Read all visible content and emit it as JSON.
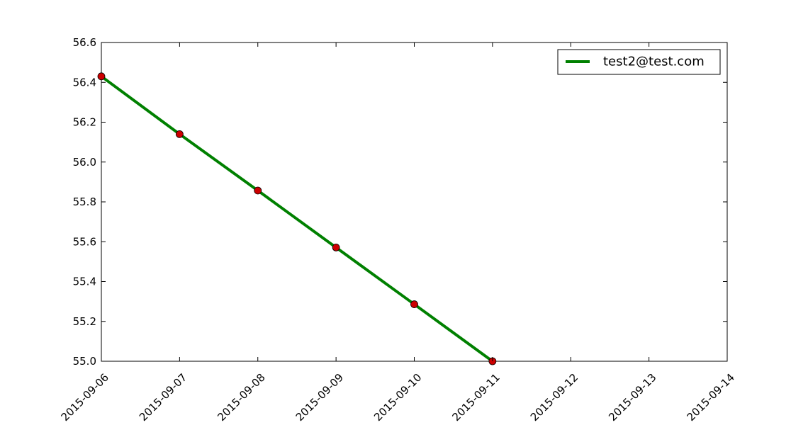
{
  "chart_data": {
    "type": "line",
    "title": "",
    "xlabel": "",
    "ylabel": "",
    "x_type": "date",
    "xlim": [
      "2015-09-06",
      "2015-09-14"
    ],
    "ylim": [
      55.0,
      56.6
    ],
    "x_ticks": [
      "2015-09-06",
      "2015-09-07",
      "2015-09-08",
      "2015-09-09",
      "2015-09-10",
      "2015-09-11",
      "2015-09-12",
      "2015-09-13",
      "2015-09-14"
    ],
    "y_ticks": [
      "55.0",
      "55.2",
      "55.4",
      "55.6",
      "55.8",
      "56.0",
      "56.2",
      "56.4",
      "56.6"
    ],
    "grid": false,
    "legend_position": "upper right",
    "series": [
      {
        "name": "test2@test.com",
        "line_color": "#008000",
        "marker_color": "#cc0000",
        "points": [
          {
            "x": "2015-09-06",
            "y": 56.43
          },
          {
            "x": "2015-09-07",
            "y": 56.14
          },
          {
            "x": "2015-09-08",
            "y": 55.857
          },
          {
            "x": "2015-09-09",
            "y": 55.571
          },
          {
            "x": "2015-09-10",
            "y": 55.286
          },
          {
            "x": "2015-09-11",
            "y": 55.0
          }
        ]
      }
    ]
  }
}
